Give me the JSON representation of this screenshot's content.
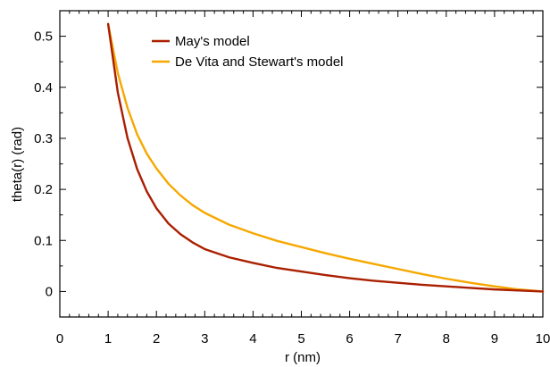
{
  "chart_data": {
    "type": "line",
    "title": "",
    "xlabel": "r (nm)",
    "ylabel": "theta(r)  (rad)",
    "xlim": [
      0,
      10
    ],
    "ylim": [
      -0.05,
      0.55
    ],
    "xticks": [
      "0",
      "1",
      "2",
      "3",
      "4",
      "5",
      "6",
      "7",
      "8",
      "9",
      "10"
    ],
    "yticks": [
      "0",
      "0.1",
      "0.2",
      "0.3",
      "0.4",
      "0.5"
    ],
    "grid": false,
    "legend_position": "top-center",
    "series": [
      {
        "name": "May's model",
        "color": "#aa1f00",
        "x": [
          1,
          1.2,
          1.4,
          1.6,
          1.8,
          2,
          2.25,
          2.5,
          2.75,
          3,
          3.5,
          4,
          4.5,
          5,
          5.5,
          6,
          6.5,
          7,
          7.5,
          8,
          8.5,
          9,
          9.5,
          10
        ],
        "y": [
          0.524,
          0.39,
          0.301,
          0.24,
          0.196,
          0.163,
          0.133,
          0.112,
          0.096,
          0.083,
          0.067,
          0.056,
          0.046,
          0.039,
          0.032,
          0.026,
          0.021,
          0.017,
          0.013,
          0.01,
          0.007,
          0.004,
          0.002,
          0
        ]
      },
      {
        "name": "De Vita and Stewart's model",
        "color": "#f6a800",
        "x": [
          1,
          1.2,
          1.4,
          1.6,
          1.8,
          2,
          2.25,
          2.5,
          2.75,
          3,
          3.5,
          4,
          4.5,
          5,
          5.5,
          6,
          6.5,
          7,
          7.5,
          8,
          8.5,
          9,
          9.5,
          10
        ],
        "y": [
          0.524,
          0.428,
          0.36,
          0.308,
          0.27,
          0.241,
          0.211,
          0.188,
          0.169,
          0.154,
          0.131,
          0.114,
          0.099,
          0.087,
          0.075,
          0.064,
          0.054,
          0.044,
          0.034,
          0.025,
          0.017,
          0.01,
          0.004,
          0
        ]
      }
    ]
  }
}
